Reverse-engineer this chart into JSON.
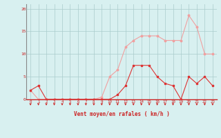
{
  "x": [
    0,
    1,
    2,
    3,
    4,
    5,
    6,
    7,
    8,
    9,
    10,
    11,
    12,
    13,
    14,
    15,
    16,
    17,
    18,
    19,
    20,
    21,
    22,
    23
  ],
  "y_avg": [
    2,
    3,
    0,
    0,
    0,
    0,
    0,
    0,
    0,
    0,
    0,
    1,
    3,
    7.5,
    7.5,
    7.5,
    5,
    3.5,
    3,
    0,
    5,
    3.5,
    5,
    3
  ],
  "y_gust": [
    2,
    0,
    0,
    0,
    0,
    0,
    0,
    0,
    0,
    0.5,
    5,
    6.5,
    11.5,
    13,
    14,
    14,
    14,
    13,
    13,
    13,
    18.5,
    16,
    10,
    10
  ],
  "avg_color": "#dd3333",
  "gust_color": "#f0a0a0",
  "bg_color": "#d8f0f0",
  "grid_color": "#aacccc",
  "text_color": "#cc2222",
  "xlabel": "Vent moyen/en rafales ( km/h )",
  "ylim": [
    0,
    21
  ],
  "yticks": [
    0,
    5,
    10,
    15,
    20
  ],
  "xlim": [
    -0.5,
    23.5
  ]
}
